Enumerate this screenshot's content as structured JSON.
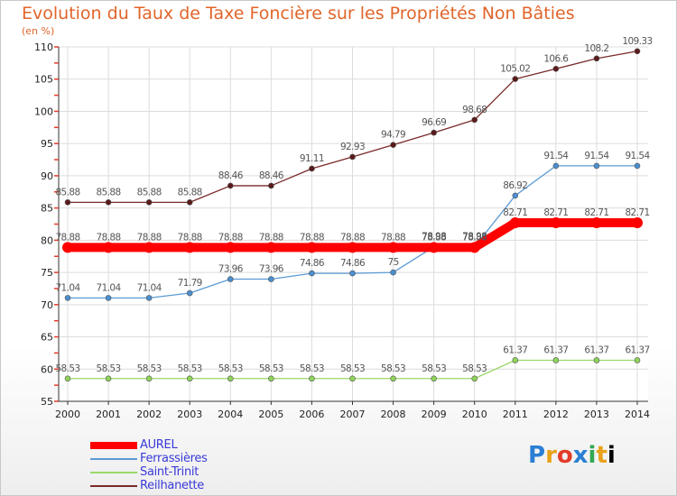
{
  "chart_data": {
    "type": "line",
    "title": "Evolution du Taux de Taxe Foncière sur les Propriétés Non Bâties",
    "unit_label": "(en %)",
    "x": [
      "2000",
      "2001",
      "2002",
      "2003",
      "2004",
      "2005",
      "2006",
      "2007",
      "2008",
      "2009",
      "2010",
      "2011",
      "2012",
      "2013",
      "2014"
    ],
    "ylim": [
      55,
      110
    ],
    "yticks": [
      55,
      60,
      65,
      70,
      75,
      80,
      85,
      90,
      95,
      100,
      105,
      110
    ],
    "grid": true,
    "legend_position": "bottom-left",
    "series": [
      {
        "name": "AUREL",
        "color": "#ff0000",
        "marker_color": "#ff0000",
        "values": [
          78.88,
          78.88,
          78.88,
          78.88,
          78.88,
          78.88,
          78.88,
          78.88,
          78.88,
          78.88,
          78.88,
          82.71,
          82.71,
          82.71,
          82.71
        ],
        "labels": [
          "78.88",
          "78.88",
          "78.88",
          "78.88",
          "78.88",
          "78.88",
          "78.88",
          "78.88",
          "78.88",
          "78.88",
          "78.88",
          "82.71",
          "82.71",
          "82.71",
          "82.71"
        ]
      },
      {
        "name": "Ferrassières",
        "color": "#5b9bd5",
        "marker_color": "#4a8fd0",
        "values": [
          71.04,
          71.04,
          71.04,
          71.79,
          73.96,
          73.96,
          74.86,
          74.86,
          75,
          78.98,
          78.98,
          86.92,
          91.54,
          91.54,
          91.54
        ],
        "labels": [
          "71.04",
          "71.04",
          "71.04",
          "71.79",
          "73.96",
          "73.96",
          "74.86",
          "74.86",
          "75",
          "78.98",
          "78.98",
          "86.92",
          "91.54",
          "91.54",
          "91.54"
        ]
      },
      {
        "name": "Saint-Trinit",
        "color": "#9bd86a",
        "marker_color": "#8fd45a",
        "values": [
          58.53,
          58.53,
          58.53,
          58.53,
          58.53,
          58.53,
          58.53,
          58.53,
          58.53,
          58.53,
          58.53,
          61.37,
          61.37,
          61.37,
          61.37
        ],
        "labels": [
          "58.53",
          "58.53",
          "58.53",
          "58.53",
          "58.53",
          "58.53",
          "58.53",
          "58.53",
          "58.53",
          "58.53",
          "58.53",
          "61.37",
          "61.37",
          "61.37",
          "61.37"
        ]
      },
      {
        "name": "Reilhanette",
        "color": "#7a2a2a",
        "marker_color": "#5a1a1a",
        "values": [
          85.88,
          85.88,
          85.88,
          85.88,
          88.46,
          88.46,
          91.11,
          92.93,
          94.79,
          96.69,
          98.68,
          105.02,
          106.6,
          108.2,
          109.33
        ],
        "labels": [
          "85.88",
          "85.88",
          "85.88",
          "85.88",
          "88.46",
          "88.46",
          "91.11",
          "92.93",
          "94.79",
          "96.69",
          "98.68",
          "105.02",
          "106.6",
          "108.2",
          "109.33"
        ]
      }
    ]
  },
  "logo_letters": [
    "P",
    "r",
    "o",
    "x",
    "i",
    "t",
    "i"
  ]
}
